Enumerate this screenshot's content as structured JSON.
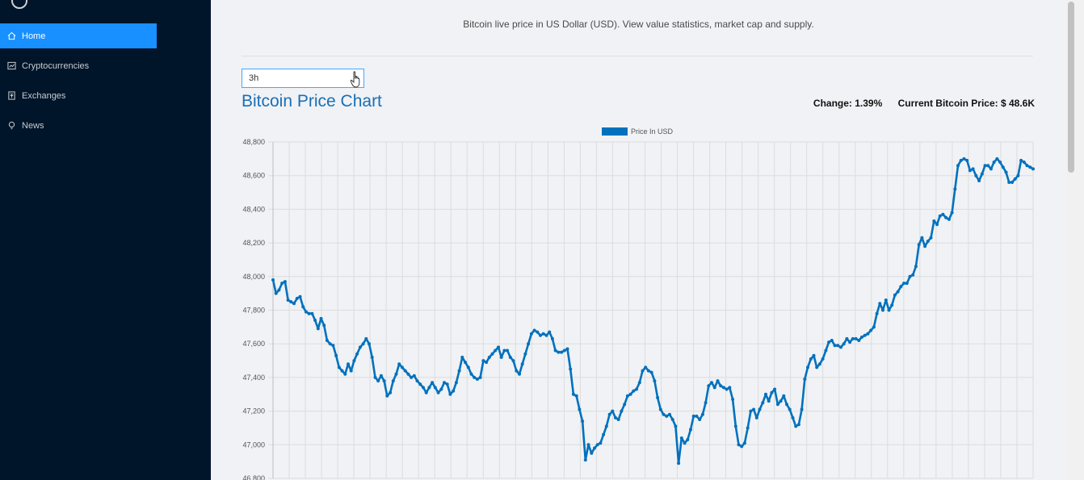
{
  "sidebar": {
    "items": [
      {
        "label": "Home",
        "icon": "home-icon",
        "active": true
      },
      {
        "label": "Cryptocurrencies",
        "icon": "fund-icon",
        "active": false
      },
      {
        "label": "Exchanges",
        "icon": "money-collect-icon",
        "active": false
      },
      {
        "label": "News",
        "icon": "bulb-icon",
        "active": false
      }
    ]
  },
  "header": {
    "subtitle": "Bitcoin live price in US Dollar (USD). View value statistics, market cap and supply."
  },
  "period_select": {
    "value": "3h"
  },
  "chart_header": {
    "title": "Bitcoin Price Chart",
    "change": "Change: 1.39%",
    "current_price": "Current Bitcoin Price: $ 48.6K"
  },
  "chart_data": {
    "type": "line",
    "legend": "Price In USD",
    "legend_placement": "top-center",
    "color": "#0071bd",
    "grid": true,
    "ylim": [
      46800,
      48800
    ],
    "yticks": [
      "46,800",
      "47,000",
      "47,200",
      "47,400",
      "47,600",
      "47,800",
      "48,000",
      "48,200",
      "48,400",
      "48,600",
      "48,800"
    ],
    "values": [
      47980,
      47900,
      47920,
      47960,
      47970,
      47860,
      47850,
      47840,
      47870,
      47880,
      47820,
      47790,
      47780,
      47780,
      47740,
      47690,
      47750,
      47710,
      47620,
      47600,
      47590,
      47530,
      47460,
      47440,
      47420,
      47480,
      47440,
      47500,
      47540,
      47580,
      47600,
      47630,
      47600,
      47520,
      47400,
      47380,
      47410,
      47380,
      47290,
      47310,
      47380,
      47420,
      47480,
      47460,
      47440,
      47420,
      47400,
      47410,
      47380,
      47360,
      47340,
      47310,
      47340,
      47370,
      47340,
      47310,
      47330,
      47370,
      47360,
      47300,
      47320,
      47370,
      47440,
      47520,
      47490,
      47460,
      47420,
      47400,
      47390,
      47400,
      47500,
      47490,
      47520,
      47540,
      47560,
      47580,
      47520,
      47560,
      47560,
      47520,
      47500,
      47440,
      47420,
      47480,
      47540,
      47600,
      47660,
      47680,
      47670,
      47650,
      47660,
      47650,
      47670,
      47630,
      47560,
      47550,
      47550,
      47560,
      47570,
      47450,
      47300,
      47290,
      47210,
      47140,
      46910,
      47000,
      46950,
      46980,
      47000,
      47010,
      47060,
      47110,
      47180,
      47200,
      47160,
      47150,
      47200,
      47240,
      47290,
      47300,
      47320,
      47330,
      47370,
      47440,
      47460,
      47440,
      47430,
      47380,
      47280,
      47210,
      47180,
      47170,
      47180,
      47150,
      47110,
      46890,
      47040,
      47010,
      47030,
      47090,
      47170,
      47170,
      47150,
      47180,
      47250,
      47350,
      47370,
      47340,
      47380,
      47350,
      47340,
      47330,
      47340,
      47270,
      47110,
      47000,
      46990,
      47010,
      47100,
      47200,
      47210,
      47160,
      47210,
      47250,
      47300,
      47260,
      47310,
      47330,
      47240,
      47260,
      47290,
      47240,
      47210,
      47160,
      47110,
      47120,
      47210,
      47390,
      47460,
      47510,
      47530,
      47460,
      47480,
      47510,
      47560,
      47610,
      47620,
      47590,
      47590,
      47580,
      47600,
      47630,
      47610,
      47630,
      47630,
      47620,
      47640,
      47650,
      47660,
      47680,
      47700,
      47780,
      47840,
      47800,
      47860,
      47800,
      47830,
      47890,
      47910,
      47940,
      47960,
      47960,
      48000,
      48010,
      48060,
      48190,
      48230,
      48180,
      48210,
      48230,
      48330,
      48310,
      48360,
      48370,
      48350,
      48340,
      48380,
      48520,
      48660,
      48690,
      48700,
      48690,
      48630,
      48640,
      48600,
      48570,
      48610,
      48660,
      48660,
      48640,
      48680,
      48700,
      48680,
      48650,
      48620,
      48560,
      48560,
      48580,
      48600,
      48690,
      48680,
      48660,
      48650,
      48640
    ]
  }
}
